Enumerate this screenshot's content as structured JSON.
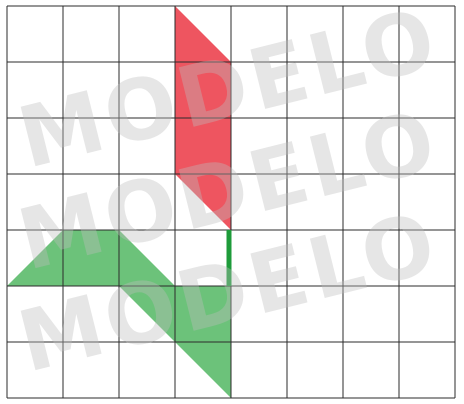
{
  "grid": {
    "columns": 8,
    "rows": 7,
    "line_color": "#2b2b2b"
  },
  "shapes": [
    {
      "name": "red-parallelogram",
      "color": "#ee5560",
      "points": [
        [
          3,
          0
        ],
        [
          4,
          1
        ],
        [
          4,
          4
        ],
        [
          3,
          3
        ]
      ]
    },
    {
      "name": "green-zigzag-shape",
      "color": "#6cc27a",
      "points": [
        [
          1,
          4
        ],
        [
          2,
          4
        ],
        [
          3,
          5
        ],
        [
          4,
          5
        ],
        [
          4,
          7
        ],
        [
          2,
          5
        ],
        [
          0,
          5
        ]
      ]
    }
  ],
  "stem": {
    "name": "green-stem",
    "color": "#1e9b3a",
    "from": [
      4,
      4
    ],
    "to": [
      4,
      5
    ]
  },
  "watermark": {
    "text": "MODELO",
    "repeat": 3
  }
}
